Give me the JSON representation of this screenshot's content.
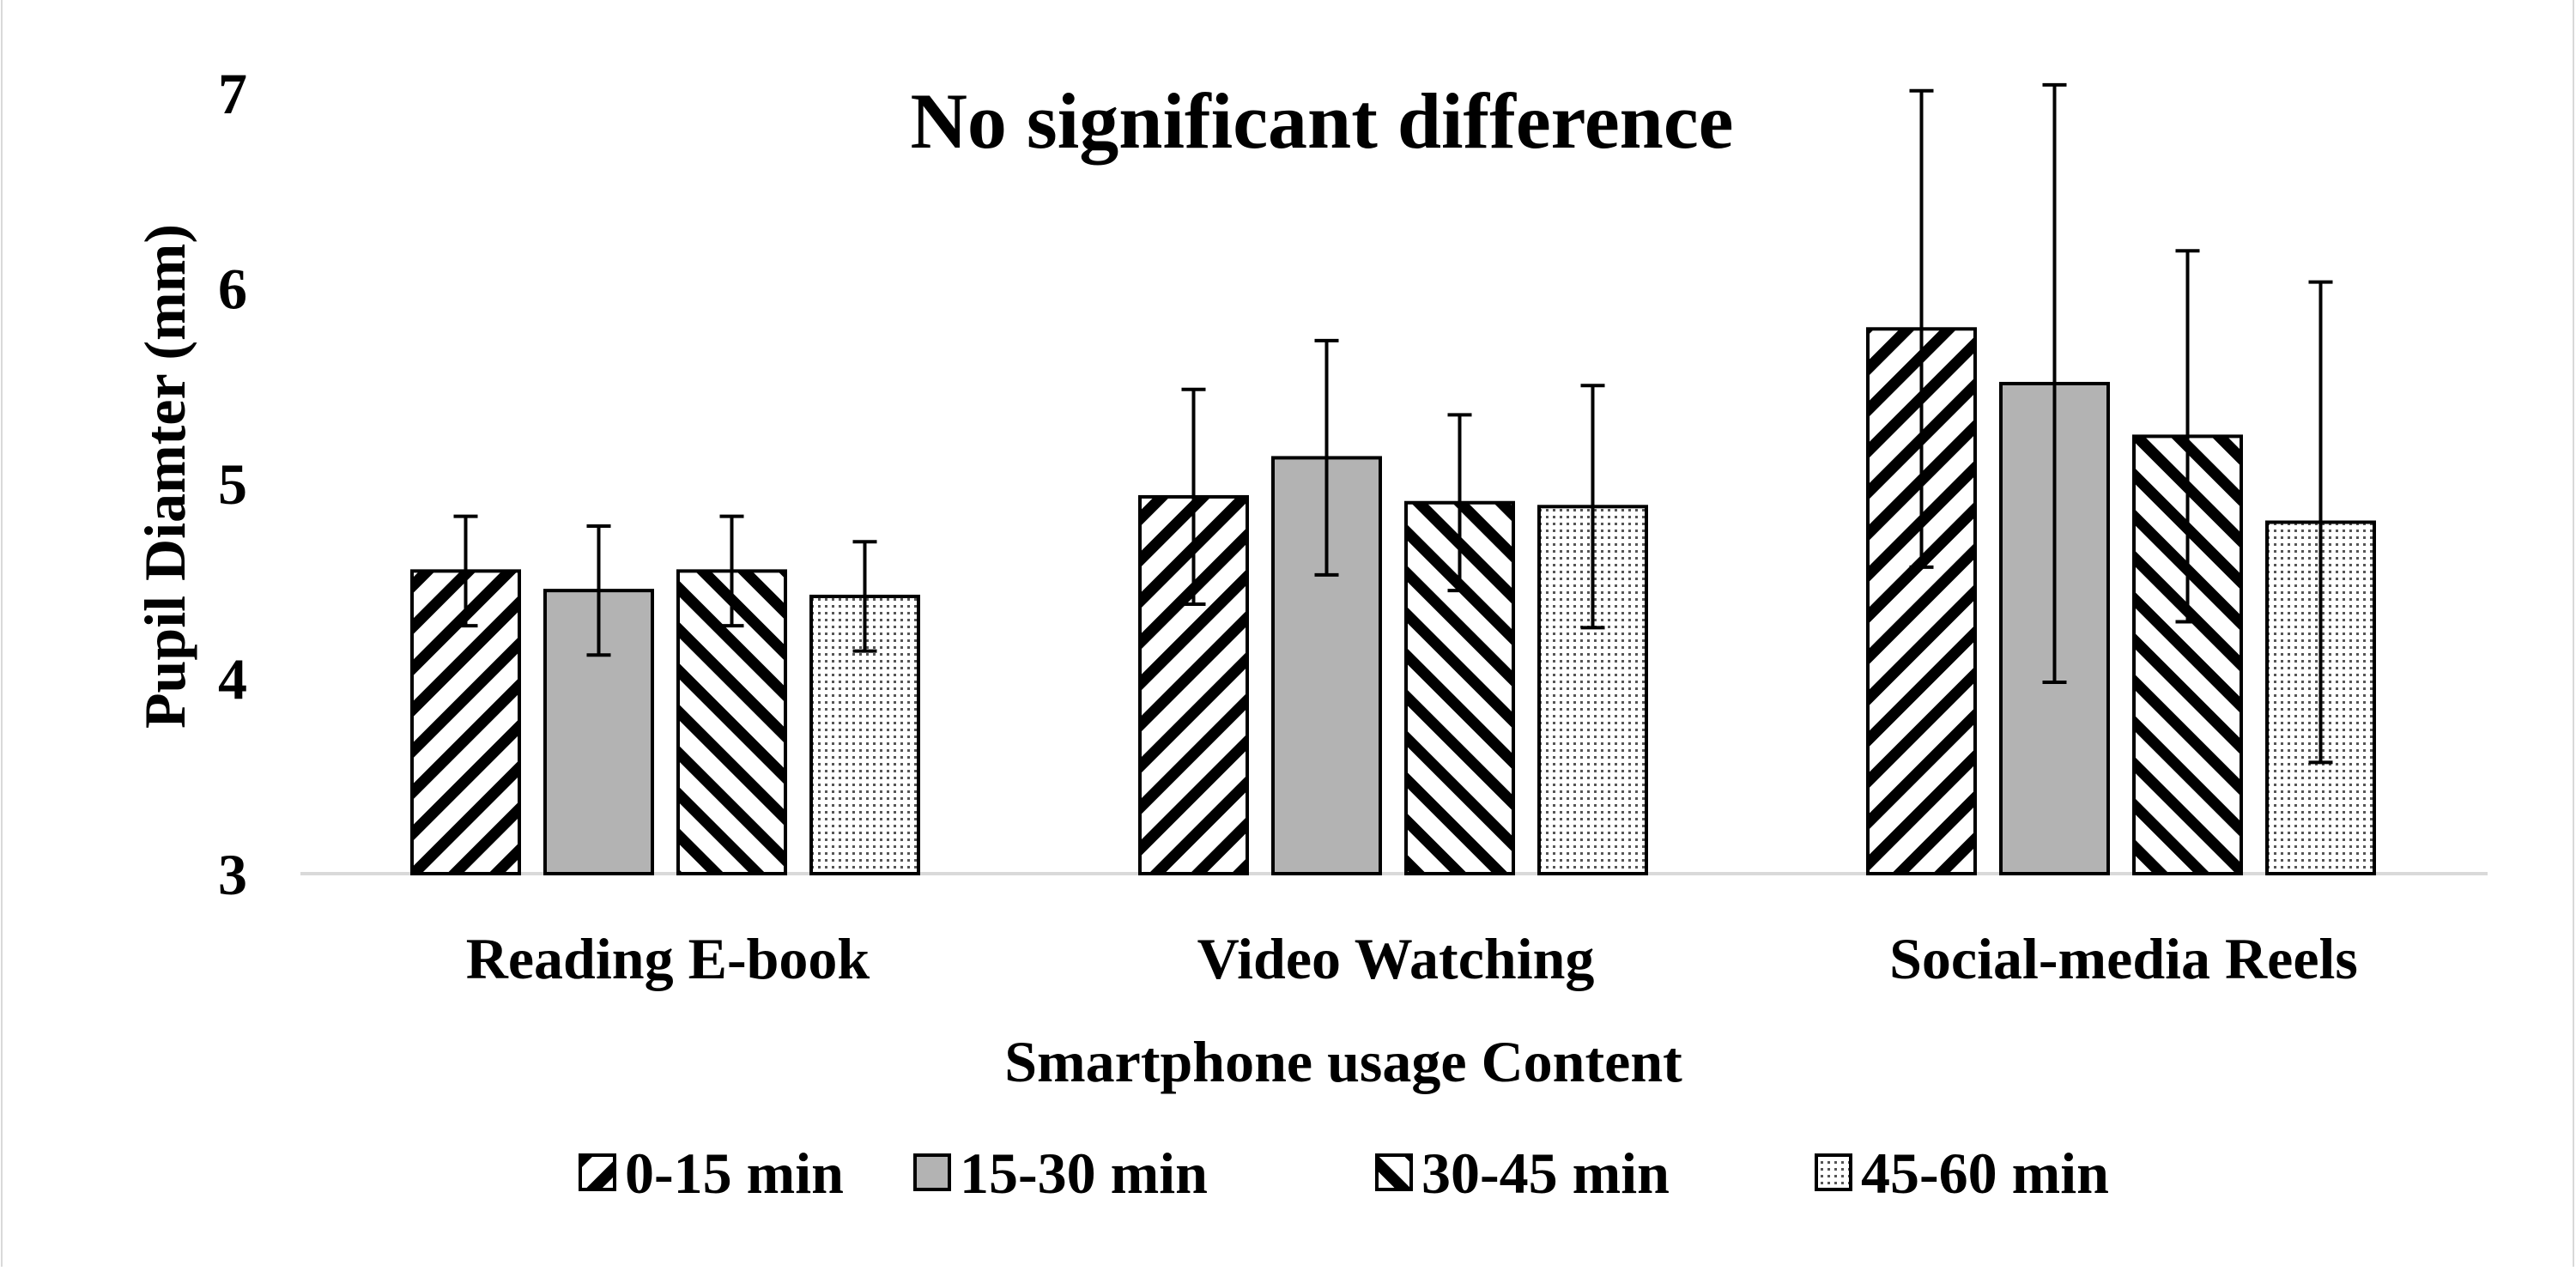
{
  "chart_data": {
    "type": "bar",
    "title": "No significant difference",
    "xlabel": "Smartphone usage Content",
    "ylabel": "Pupil Diamter (mm)",
    "ylim": [
      3,
      7
    ],
    "yticks": [
      "3",
      "4",
      "5",
      "6",
      "7"
    ],
    "grid": false,
    "legend_position": "bottom",
    "categories": [
      "Reading E-book",
      "Video Watching",
      "Social-media Reels"
    ],
    "series": [
      {
        "name": "0-15 min",
        "pattern": "diagonal-down",
        "values": [
          4.55,
          4.93,
          5.79
        ],
        "error": [
          0.28,
          0.55,
          1.22
        ]
      },
      {
        "name": "15-30 min",
        "pattern": "solid-gray",
        "values": [
          4.45,
          5.13,
          5.51
        ],
        "error": [
          0.33,
          0.6,
          1.53
        ]
      },
      {
        "name": "30-45 min",
        "pattern": "diagonal-up",
        "values": [
          4.55,
          4.9,
          5.24
        ],
        "error": [
          0.28,
          0.45,
          0.95
        ]
      },
      {
        "name": "45-60 min",
        "pattern": "dots",
        "values": [
          4.42,
          4.88,
          4.8
        ],
        "error": [
          0.28,
          0.62,
          1.23
        ]
      }
    ],
    "colors": {
      "bar_fill_gray": "#b3b3b3",
      "stroke": "#000000",
      "axis": "#d9d9d9"
    }
  }
}
